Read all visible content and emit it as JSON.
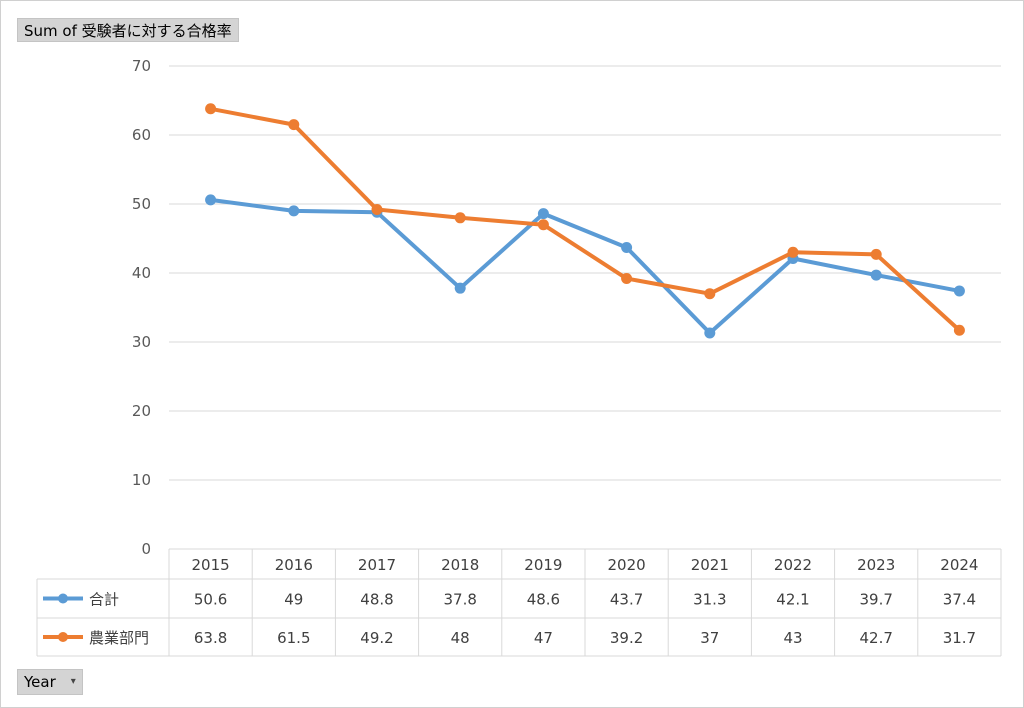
{
  "pivot": {
    "value_field_label": "Sum of 受験者に対する合格率",
    "axis_field_label": "Year",
    "dropdown_icon": "dropdown-arrow-icon"
  },
  "colors": {
    "series_total": "#5b9bd5",
    "series_agriculture": "#ed7d31",
    "gridline": "#d9d9d9",
    "tick_text": "#595959"
  },
  "chart_data": {
    "type": "line",
    "title": "",
    "xlabel": "",
    "ylabel": "",
    "categories": [
      "2015",
      "2016",
      "2017",
      "2018",
      "2019",
      "2020",
      "2021",
      "2022",
      "2023",
      "2024"
    ],
    "ylim": [
      0,
      70
    ],
    "yticks": [
      0,
      10,
      20,
      30,
      40,
      50,
      60,
      70
    ],
    "grid": true,
    "legend": "data-table",
    "series": [
      {
        "name": "合計",
        "color": "#5b9bd5",
        "values": [
          50.6,
          49,
          48.8,
          37.8,
          48.6,
          43.7,
          31.3,
          42.1,
          39.7,
          37.4
        ]
      },
      {
        "name": "農業部門",
        "color": "#ed7d31",
        "values": [
          63.8,
          61.5,
          49.2,
          48,
          47,
          39.2,
          37,
          43,
          42.7,
          31.7
        ]
      }
    ],
    "data_table_labels": [
      [
        "50.6",
        "49",
        "48.8",
        "37.8",
        "48.6",
        "43.7",
        "31.3",
        "42.1",
        "39.7",
        "37.4"
      ],
      [
        "63.8",
        "61.5",
        "49.2",
        "48",
        "47",
        "39.2",
        "37",
        "43",
        "42.7",
        "31.7"
      ]
    ]
  }
}
